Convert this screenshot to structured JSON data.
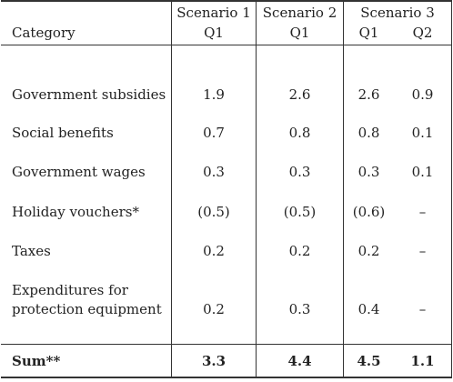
{
  "table": {
    "header": {
      "scenario1": "Scenario 1",
      "scenario2": "Scenario 2",
      "scenario3": "Scenario 3",
      "category": "Category",
      "q1_s1": "Q1",
      "q1_s2": "Q1",
      "q1_s3": "Q1",
      "q2_s3": "Q2"
    },
    "rows": [
      {
        "label": "Government subsidies",
        "s1q1": "1.9",
        "s2q1": "2.6",
        "s3q1": "2.6",
        "s3q2": "0.9"
      },
      {
        "label": "Social benefits",
        "s1q1": "0.7",
        "s2q1": "0.8",
        "s3q1": "0.8",
        "s3q2": "0.1"
      },
      {
        "label": "Government wages",
        "s1q1": "0.3",
        "s2q1": "0.3",
        "s3q1": "0.3",
        "s3q2": "0.1"
      },
      {
        "label": "Holiday vouchers*",
        "s1q1": "(0.5)",
        "s2q1": "(0.5)",
        "s3q1": "(0.6)",
        "s3q2": "–"
      },
      {
        "label": "Taxes",
        "s1q1": "0.2",
        "s2q1": "0.2",
        "s3q1": "0.2",
        "s3q2": "–"
      },
      {
        "label_line1": "Expenditures for",
        "label_line2": "protection equipment",
        "s1q1": "0.2",
        "s2q1": "0.3",
        "s3q1": "0.4",
        "s3q2": "–"
      }
    ],
    "sum": {
      "label": "Sum**",
      "s1q1": "3.3",
      "s2q1": "4.4",
      "s3q1": "4.5",
      "s3q2": "1.1"
    }
  }
}
